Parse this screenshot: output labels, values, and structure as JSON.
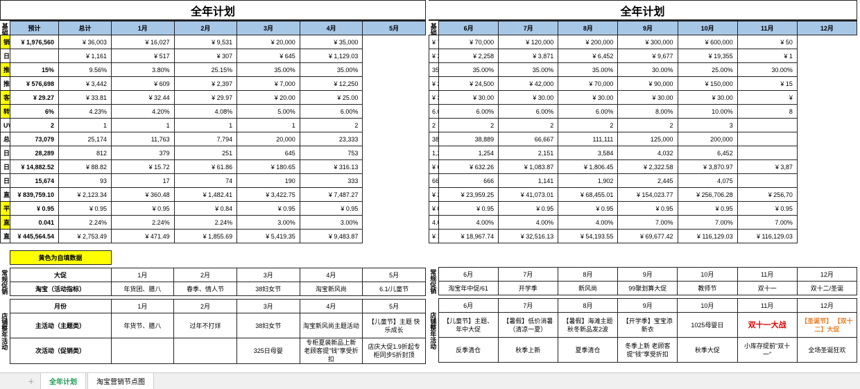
{
  "titles": {
    "left": "全年计划",
    "right": "全年计划"
  },
  "leftCols": [
    "预计",
    "总计",
    "1月",
    "2月",
    "3月",
    "4月",
    "5月"
  ],
  "rightCols": [
    "6月",
    "7月",
    "8月",
    "9月",
    "10月",
    "11月",
    "12月"
  ],
  "vlabel": {
    "left": "基础销售额预算",
    "right": "基础销售额预算"
  },
  "rows": [
    {
      "lbl": "销售预估",
      "yellow": true,
      "L": [
        "¥ 1,976,560",
        "¥ 36,003",
        "¥ 16,027",
        "¥ 9,531",
        "¥ 20,000",
        "¥ 35,000"
      ],
      "R": [
        "¥ 70,000",
        "¥ 70,000",
        "¥ 120,000",
        "¥ 200,000",
        "¥ 300,000",
        "¥ 600,000",
        "¥ 50"
      ]
    },
    {
      "lbl": "日均销售",
      "yellow": false,
      "L": [
        "",
        "¥ 1,161",
        "¥ 517",
        "¥ 307",
        "¥ 645",
        "¥ 1,129.03"
      ],
      "R": [
        "¥ 2,258",
        "¥ 2,258",
        "¥ 3,871",
        "¥ 6,452",
        "¥ 9,677",
        "¥ 19,355",
        "¥ 1"
      ]
    },
    {
      "lbl": "推广占比",
      "yellow": true,
      "L": [
        "15%",
        "9.56%",
        "3.80%",
        "25.15%",
        "35.00%",
        "35.00%"
      ],
      "R": [
        "35.00%",
        "35.00%",
        "35.00%",
        "35.00%",
        "30.00%",
        "25.00%",
        "30.00%"
      ]
    },
    {
      "lbl": "推广销售预估",
      "yellow": false,
      "L": [
        "¥ 576,698",
        "¥ 3,442",
        "¥ 609",
        "¥ 2,397",
        "¥ 7,000",
        "¥ 12,250"
      ],
      "R": [
        "¥ 24,500",
        "¥ 24,500",
        "¥ 42,000",
        "¥ 70,000",
        "¥ 90,000",
        "¥ 150,000",
        "¥ 15"
      ]
    },
    {
      "lbl": "客单价",
      "yellow": true,
      "L": [
        "¥ 29.27",
        "¥ 33.81",
        "¥ 32.44",
        "¥ 29.97",
        "¥ 20.00",
        "¥ 25.00"
      ],
      "R": [
        "¥ 30.00",
        "¥ 30.00",
        "¥ 30.00",
        "¥ 30.00",
        "¥ 30.00",
        "¥ 30.00",
        "¥"
      ]
    },
    {
      "lbl": "转化率",
      "yellow": true,
      "L": [
        "6%",
        "4.23%",
        "4.20%",
        "4.08%",
        "5.00%",
        "6.00%"
      ],
      "R": [
        "6.00%",
        "6.00%",
        "6.00%",
        "6.00%",
        "8.00%",
        "10.00%",
        "8"
      ]
    },
    {
      "lbl": "UV价值",
      "yellow": false,
      "L": [
        "2",
        "1",
        "1",
        "1",
        "1",
        "2"
      ],
      "R": [
        "2",
        "2",
        "2",
        "2",
        "2",
        "3",
        ""
      ]
    },
    {
      "lbl": "总UV",
      "yellow": false,
      "L": [
        "73,079",
        "25,174",
        "11,763",
        "7,794",
        "20,000",
        "23,333"
      ],
      "R": [
        "38,889",
        "38,889",
        "66,667",
        "111,111",
        "125,000",
        "200,000",
        ""
      ]
    },
    {
      "lbl": "日均UV",
      "yellow": false,
      "L": [
        "28,289",
        "812",
        "379",
        "251",
        "645",
        "753"
      ],
      "R": [
        "1,254",
        "1,254",
        "2,151",
        "3,584",
        "4,032",
        "6,452",
        ""
      ]
    },
    {
      "lbl": "日均直通车预算",
      "yellow": false,
      "L": [
        "¥ 14,882.52",
        "¥ 88.82",
        "¥ 15.72",
        "¥ 61.86",
        "¥ 180.65",
        "¥ 316.13"
      ],
      "R": [
        "¥ 632.26",
        "¥ 632.26",
        "¥ 1,083.87",
        "¥ 1,806.45",
        "¥ 2,322.58",
        "¥ 3,870.97",
        "¥ 3,87"
      ]
    },
    {
      "lbl": "日均直通车点击量",
      "yellow": false,
      "L": [
        "15,674",
        "93",
        "17",
        "74",
        "190",
        "333"
      ],
      "R": [
        "666",
        "666",
        "1,141",
        "1,902",
        "2,445",
        "4,075",
        ""
      ]
    },
    {
      "lbl": "直通车销售额",
      "yellow": false,
      "L": [
        "¥ 839,759.10",
        "¥ 2,123.34",
        "¥ 360.48",
        "¥ 1,482.41",
        "¥ 3,422.75",
        "¥ 7,487.27"
      ],
      "R": [
        "¥ 23,959.25",
        "¥ 23,959.25",
        "¥ 41,073.01",
        "¥ 68,455.01",
        "¥ 154,023.77",
        "¥ 256,706.28",
        "¥ 256,70"
      ]
    },
    {
      "lbl": "平均点击花费",
      "yellow": true,
      "L": [
        "¥ 0.95",
        "¥ 0.95",
        "¥ 0.95",
        "¥ 0.84",
        "¥ 0.95",
        "¥ 0.95"
      ],
      "R": [
        "¥ 0.95",
        "¥ 0.95",
        "¥ 0.95",
        "¥ 0.95",
        "¥ 0.95",
        "¥ 0.95",
        "¥ 0.95"
      ]
    },
    {
      "lbl": "直通车点击转化率",
      "yellow": true,
      "L": [
        "0.041",
        "2.24%",
        "2.24%",
        "2.24%",
        "3.00%",
        "3.00%"
      ],
      "R": [
        "4.00%",
        "4.00%",
        "4.00%",
        "4.00%",
        "7.00%",
        "7.00%",
        "7.00%"
      ]
    },
    {
      "lbl": "直通车预算",
      "yellow": false,
      "L": [
        "¥ 445,564.54",
        "¥ 2,753.49",
        "¥ 471.49",
        "¥ 1,855.69",
        "¥ 5,419.35",
        "¥ 9,483.87"
      ],
      "R": [
        "¥ 18,967.74",
        "¥ 18,967.74",
        "¥ 32,516.13",
        "¥ 54,193.55",
        "¥ 69,677.42",
        "¥ 116,129.03",
        "¥ 116,129.03"
      ]
    }
  ],
  "note": "黄色为自填数据",
  "promoVlabel": {
    "left": "常规促销",
    "right": "常规促销"
  },
  "promoHeader": {
    "L1": [
      "大促",
      "1月",
      "2月",
      "3月",
      "4月",
      "5月"
    ],
    "L2": [
      "淘宝（活动指标）",
      "年货团、腊八",
      "春季、情人节",
      "38妇女节",
      "淘宝新风尚",
      "6.1/儿童节"
    ],
    "R1": [
      "6月",
      "7月",
      "8月",
      "9月",
      "10月",
      "11月",
      "12月"
    ],
    "R2": [
      "淘宝年中促/61",
      "开学季",
      "新风尚",
      "99聚划算大促",
      "教师节",
      "双十一",
      "双十二/圣诞"
    ]
  },
  "shopVlabel": {
    "left": "店铺整年活动",
    "right": "店铺整年活动"
  },
  "shopHeader": {
    "L": [
      "月份",
      "1月",
      "2月",
      "3月",
      "4月",
      "5月"
    ],
    "R": [
      "6月",
      "7月",
      "8月",
      "9月",
      "10月",
      "11月",
      "12月"
    ]
  },
  "mainAct": {
    "lbl": "主活动（主题类）",
    "L": [
      "年货节、腊八",
      "过年不打烊",
      "38妇女节",
      "淘宝新风尚主题活动",
      "【儿童节】主题\\n快乐成长"
    ],
    "R": [
      "【儿童节】主题、年中大促",
      "【暑假】低价消暑（清凉一夏）",
      "【暑假】海滩主题\\n秋冬新品发2波",
      "【开学季】宝宝添新衣",
      "1025母婴日",
      "双十一大战",
      "【圣诞节】\\n【双十二】大促"
    ]
  },
  "subAct": {
    "lbl": "次活动（促销类）",
    "L": [
      "",
      "",
      "325日母婴",
      "专柜夏装新品上新\\n老顾客提\"钱\"享受折扣",
      "店庆大促1.9折起专柜同步5折封顶"
    ],
    "R": [
      "反季清仓",
      "秋季上新",
      "夏季清仓",
      "冬季上新\\n老顾客提\"钱\"享受折扣",
      "秋季大促",
      "小库存提前\"双十一\"",
      "全场圣诞狂欢"
    ]
  },
  "tabs": [
    "全年计划",
    "淘宝营销节点图"
  ]
}
